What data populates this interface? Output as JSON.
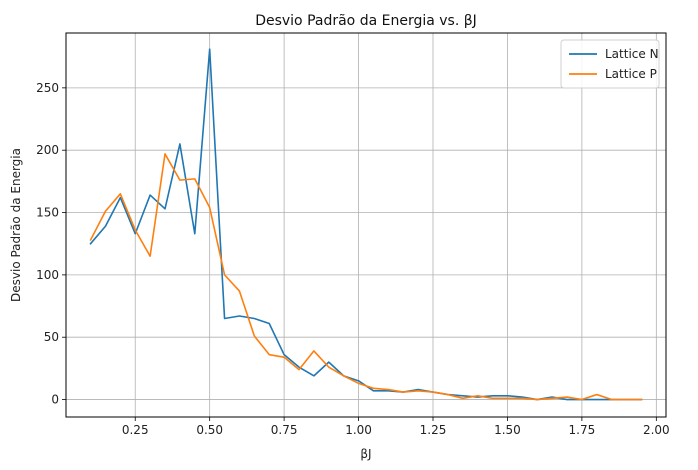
{
  "chart_data": {
    "type": "line",
    "title": "Desvio Padrão da Energia vs. βJ",
    "xlabel": "βJ",
    "ylabel": "Desvio Padrão da Energia",
    "xlim": [
      0.0175,
      2.0325
    ],
    "ylim": [
      -14,
      294
    ],
    "xticks": [
      0.25,
      0.5,
      0.75,
      1.0,
      1.25,
      1.5,
      1.75,
      2.0
    ],
    "xtick_labels": [
      "0.25",
      "0.50",
      "0.75",
      "1.00",
      "1.25",
      "1.50",
      "1.75",
      "2.00"
    ],
    "yticks": [
      0,
      50,
      100,
      150,
      200,
      250
    ],
    "ytick_labels": [
      "0",
      "50",
      "100",
      "150",
      "200",
      "250"
    ],
    "grid": true,
    "legend_position": "top-right",
    "x": [
      0.1,
      0.15,
      0.2,
      0.25,
      0.3,
      0.35,
      0.4,
      0.45,
      0.5,
      0.55,
      0.6,
      0.65,
      0.7,
      0.75,
      0.8,
      0.85,
      0.9,
      0.95,
      1.0,
      1.05,
      1.1,
      1.15,
      1.2,
      1.25,
      1.3,
      1.35,
      1.4,
      1.45,
      1.5,
      1.55,
      1.6,
      1.65,
      1.7,
      1.75,
      1.8,
      1.85,
      1.9,
      1.95
    ],
    "series": [
      {
        "name": "Lattice N",
        "color": "#1f77b4",
        "values": [
          125,
          139,
          162,
          133,
          164,
          153,
          205,
          133,
          281,
          65,
          67,
          65,
          61,
          36,
          26,
          19,
          30,
          19,
          15,
          7,
          7,
          6,
          8,
          6,
          4,
          3,
          2,
          3,
          3,
          2,
          0,
          2,
          0,
          0,
          0,
          0,
          0,
          0
        ]
      },
      {
        "name": "Lattice P",
        "color": "#ff7f0e",
        "values": [
          128,
          151,
          165,
          136,
          115,
          197,
          176,
          177,
          154,
          100,
          87,
          51,
          36,
          34,
          24,
          39,
          26,
          19,
          13,
          9,
          8,
          6,
          7,
          6,
          4,
          1,
          3,
          1,
          1,
          1,
          0,
          1,
          2,
          0,
          4,
          0,
          0,
          0
        ]
      }
    ]
  }
}
